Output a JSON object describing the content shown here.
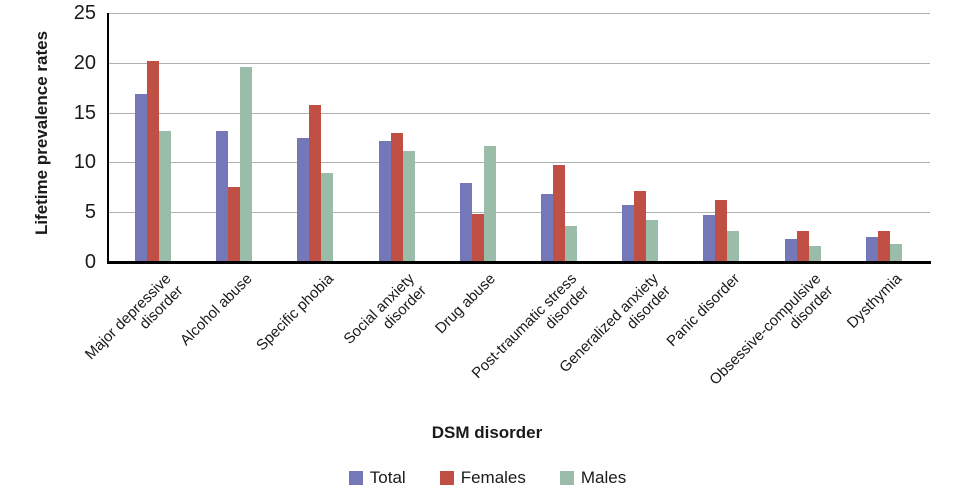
{
  "chart_data": {
    "type": "bar",
    "title": "",
    "xlabel": "DSM disorder",
    "ylabel": "Lifetime prevalence rates",
    "ylim": [
      0,
      25
    ],
    "yticks": [
      0,
      5,
      10,
      15,
      20,
      25
    ],
    "grid": true,
    "legend_position": "bottom",
    "categories": [
      "Major depressive\ndisorder",
      "Alcohol abuse",
      "Specific phobia",
      "Social anxiety\ndisorder",
      "Drug abuse",
      "Post-traumatic stress\ndisorder",
      "Generalized anxiety\ndisorder",
      "Panic disorder",
      "Obsessive-compulsive\ndisorder",
      "Dysthymia"
    ],
    "series": [
      {
        "name": "Total",
        "color": "#7478b8",
        "values": [
          16.9,
          13.2,
          12.5,
          12.1,
          7.9,
          6.8,
          5.7,
          4.7,
          2.3,
          2.5
        ]
      },
      {
        "name": "Females",
        "color": "#c04f44",
        "values": [
          20.2,
          7.5,
          15.8,
          13.0,
          4.8,
          9.7,
          7.1,
          6.2,
          3.1,
          3.1
        ]
      },
      {
        "name": "Males",
        "color": "#9cbcaa",
        "values": [
          13.2,
          19.6,
          8.9,
          11.1,
          11.6,
          3.6,
          4.2,
          3.1,
          1.6,
          1.8
        ]
      }
    ],
    "colors": {
      "grid": "#b0b0b0",
      "axis": "#000000",
      "background": "#ffffff"
    }
  }
}
